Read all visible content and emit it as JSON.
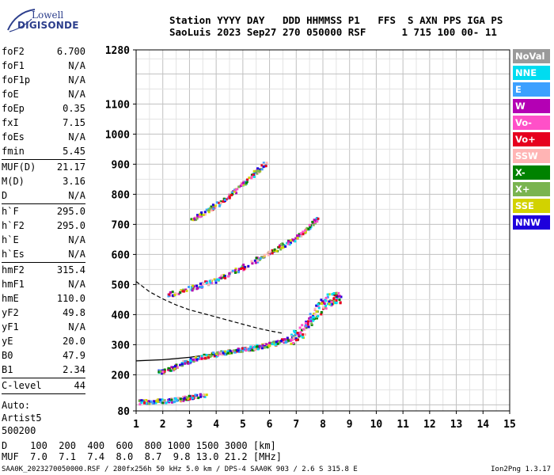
{
  "logo": {
    "line1": "Lowell",
    "line2": "DIGISONDE"
  },
  "header": {
    "line1": "Station YYYY DAY   DDD HHMMSS P1   FFS  S AXN PPS IGA PS",
    "line2": "SaoLuis 2023 Sep27 270 050000 RSF      1 715 100 00- 11"
  },
  "params": [
    {
      "label": "foF2",
      "value": "6.700"
    },
    {
      "label": "foF1",
      "value": "N/A"
    },
    {
      "label": "foF1p",
      "value": "N/A"
    },
    {
      "label": "foE",
      "value": "N/A"
    },
    {
      "label": "foEp",
      "value": "0.35"
    },
    {
      "label": "fxI",
      "value": "7.15"
    },
    {
      "label": "foEs",
      "value": "N/A"
    },
    {
      "label": "fmin",
      "value": "5.45"
    },
    {
      "sep": true
    },
    {
      "label": "MUF(D)",
      "value": "21.17"
    },
    {
      "label": "M(D)",
      "value": "3.16"
    },
    {
      "label": "D",
      "value": "N/A"
    },
    {
      "sep": true
    },
    {
      "label": "h`F",
      "value": "295.0"
    },
    {
      "label": "h`F2",
      "value": "295.0"
    },
    {
      "label": "h`E",
      "value": "N/A"
    },
    {
      "label": "h`Es",
      "value": "N/A"
    },
    {
      "sep": true
    },
    {
      "label": "hmF2",
      "value": "315.4"
    },
    {
      "label": "hmF1",
      "value": "N/A"
    },
    {
      "label": "hmE",
      "value": "110.0"
    },
    {
      "label": "yF2",
      "value": "49.8"
    },
    {
      "label": "yF1",
      "value": "N/A"
    },
    {
      "label": "yE",
      "value": "20.0"
    },
    {
      "label": "B0",
      "value": "47.9"
    },
    {
      "label": "B1",
      "value": "2.34"
    },
    {
      "sep": true
    },
    {
      "label": "C-level",
      "value": "44"
    },
    {
      "sep": true
    }
  ],
  "autoscale": {
    "line1": "Auto:",
    "line2": "Artist5",
    "line3": "500200"
  },
  "legend": [
    {
      "label": "NoVal",
      "color": "#9a9a9a"
    },
    {
      "label": "NNE",
      "color": "#00dcf0"
    },
    {
      "label": "E",
      "color": "#3ca0ff"
    },
    {
      "label": "W",
      "color": "#b400b4"
    },
    {
      "label": "Vo-",
      "color": "#ff50c8"
    },
    {
      "label": "Vo+",
      "color": "#e6001e"
    },
    {
      "label": "SSW",
      "color": "#ffb4b4"
    },
    {
      "label": "X-",
      "color": "#008200"
    },
    {
      "label": "X+",
      "color": "#7ab450"
    },
    {
      "label": "SSE",
      "color": "#d2d200"
    },
    {
      "label": "NNW",
      "color": "#1e00dc"
    }
  ],
  "chart_data": {
    "type": "scatter",
    "xlim": [
      1,
      15
    ],
    "ylim": [
      80,
      1280
    ],
    "x_ticks": [
      1,
      2,
      3,
      4,
      5,
      6,
      7,
      8,
      9,
      10,
      11,
      12,
      13,
      14,
      15
    ],
    "y_ticks": [
      80,
      200,
      300,
      400,
      500,
      600,
      700,
      800,
      900,
      1000,
      1100,
      1280
    ],
    "grid": true,
    "traces": [
      {
        "name": "F2",
        "color_mix": true,
        "points": [
          [
            1.8,
            210
          ],
          [
            2.2,
            222
          ],
          [
            2.6,
            236
          ],
          [
            3.0,
            250
          ],
          [
            3.4,
            262
          ],
          [
            3.8,
            270
          ],
          [
            4.2,
            276
          ],
          [
            4.6,
            282
          ],
          [
            5.0,
            288
          ],
          [
            5.4,
            293
          ],
          [
            5.8,
            300
          ],
          [
            6.2,
            308
          ],
          [
            6.6,
            318
          ],
          [
            6.9,
            330
          ],
          [
            7.2,
            350
          ],
          [
            7.5,
            385
          ],
          [
            7.8,
            420
          ],
          [
            8.1,
            450
          ],
          [
            8.4,
            460
          ],
          [
            8.6,
            458
          ]
        ]
      },
      {
        "name": "F2-2hop",
        "color_mix": true,
        "points": [
          [
            2.2,
            470
          ],
          [
            2.8,
            485
          ],
          [
            3.4,
            500
          ],
          [
            4.0,
            520
          ],
          [
            4.6,
            545
          ],
          [
            5.2,
            570
          ],
          [
            5.8,
            600
          ],
          [
            6.4,
            630
          ],
          [
            7.0,
            660
          ],
          [
            7.4,
            690
          ],
          [
            7.8,
            725
          ]
        ]
      },
      {
        "name": "F2-3hop",
        "color_mix": true,
        "points": [
          [
            3.0,
            715
          ],
          [
            3.5,
            740
          ],
          [
            4.0,
            770
          ],
          [
            4.5,
            800
          ],
          [
            5.0,
            840
          ],
          [
            5.5,
            880
          ],
          [
            5.9,
            910
          ]
        ]
      },
      {
        "name": "low",
        "color_mix": true,
        "points": [
          [
            1.1,
            112
          ],
          [
            1.5,
            114
          ],
          [
            1.9,
            116
          ],
          [
            2.3,
            118
          ],
          [
            2.7,
            122
          ],
          [
            3.1,
            130
          ],
          [
            3.6,
            135
          ]
        ]
      }
    ],
    "model_curves": [
      {
        "style": "solid",
        "points": [
          [
            1,
            246
          ],
          [
            2,
            250
          ],
          [
            3,
            258
          ],
          [
            4,
            270
          ],
          [
            5,
            282
          ],
          [
            6,
            302
          ],
          [
            6.6,
            318
          ]
        ]
      },
      {
        "style": "dashed",
        "points": [
          [
            1,
            510
          ],
          [
            1.5,
            476
          ],
          [
            2,
            452
          ],
          [
            2.5,
            432
          ],
          [
            3,
            416
          ],
          [
            3.5,
            404
          ],
          [
            4,
            392
          ],
          [
            4.5,
            380
          ],
          [
            5,
            368
          ],
          [
            5.5,
            356
          ],
          [
            6,
            346
          ],
          [
            6.5,
            338
          ]
        ]
      }
    ]
  },
  "bottom": {
    "line1": "D    100  200  400  600  800 1000 1500 3000 [km]",
    "line2": "MUF  7.0  7.1  7.4  8.0  8.7  9.8 13.0 21.2 [MHz]"
  },
  "footer": {
    "left": "SAA0K_2023270050000.RSF / 280fx256h 50 kHz 5.0 km / DPS-4 SAA0K 903 / 2.6 S 315.8 E",
    "right": "Ion2Png 1.3.17"
  }
}
